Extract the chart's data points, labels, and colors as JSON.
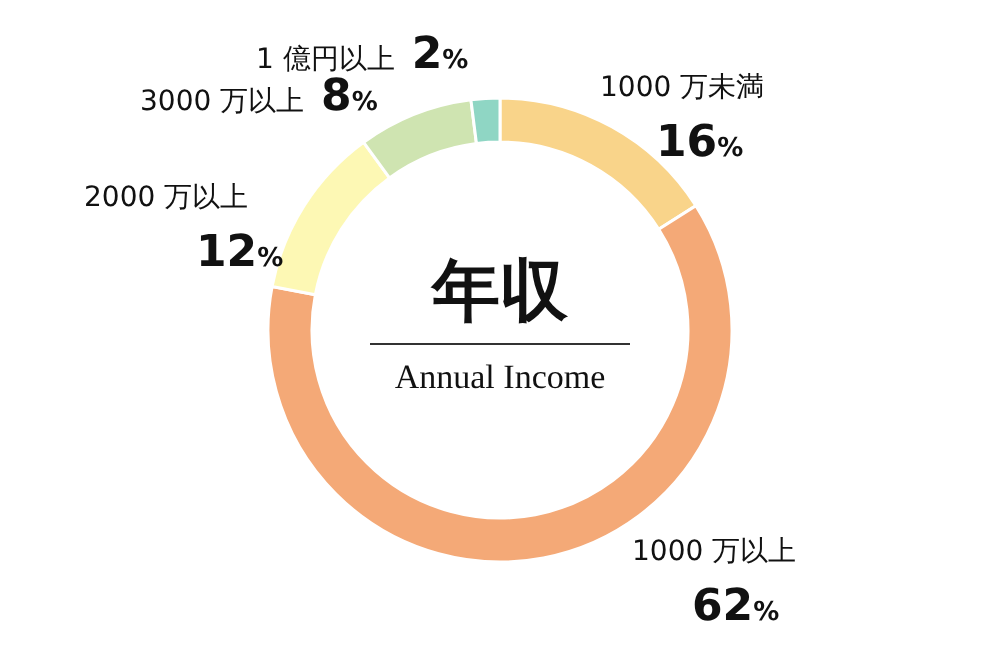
{
  "chart_data": {
    "type": "donut",
    "title": "年収",
    "subtitle": "Annual Income",
    "categories": [
      "1000 万未満",
      "1000 万以上",
      "2000 万以上",
      "3000 万以上",
      "1 億円以上"
    ],
    "values": [
      16,
      62,
      12,
      8,
      2
    ],
    "colors": [
      "#f9d48a",
      "#f4a977",
      "#fdf8b4",
      "#cfe4b1",
      "#8fd6c4"
    ],
    "value_labels": [
      "16%",
      "62%",
      "12%",
      "8%",
      "2%"
    ]
  }
}
